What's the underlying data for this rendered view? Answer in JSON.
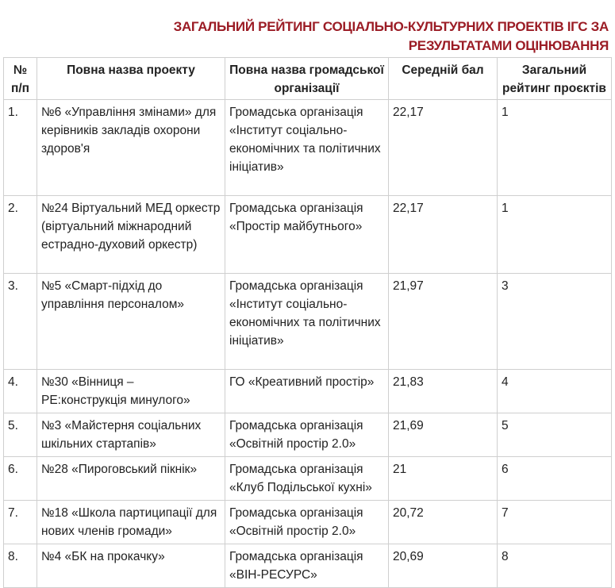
{
  "title": "ЗАГАЛЬНИЙ РЕЙТИНГ СОЦІАЛЬНО-КУЛЬТУРНИХ ПРОЕКТІВ ІГС ЗА РЕЗУЛЬТАТАМИ ОЦІНЮВАННЯ",
  "table": {
    "header": [
      "№ п/п",
      "Повна назва проекту",
      "Повна назва громадської організації",
      "Середній бал",
      "Загальний рейтинг проєктів"
    ],
    "rows": [
      [
        "1.",
        "№6 «Управління змінами» для керівників закладів охорони здоров'я",
        "Громадська організація «Інститут соціально-економічних та політичних ініціатив»",
        "22,17",
        "1"
      ],
      [
        "2.",
        "№24 Віртуальний МЕД оркестр (віртуальний міжнародний естрадно-духовий оркестр)",
        "Громадська організація «Простір майбутнього»",
        "22,17",
        "1"
      ],
      [
        "3.",
        "№5 «Смарт-підхід до управління персоналом»",
        "Громадська організація «Інститут соціально-економічних та політичних ініціатив»",
        "21,97",
        "3"
      ],
      [
        "4.",
        "№30 «Вінниця – РЕ:конструкція минулого»",
        "ГО «Креативний простір»",
        "21,83",
        "4"
      ],
      [
        "5.",
        "№3 «Майстерня соціальних шкільних стартапів»",
        "Громадська організація «Освітній простір 2.0»",
        "21,69",
        "5"
      ],
      [
        "6.",
        "№28 «Пироговський пікнік»",
        "Громадська організація «Клуб Подільської кухні»",
        "21",
        "6"
      ],
      [
        "7.",
        "№18 «Школа партиципації для нових членів громади»",
        "Громадська організація «Освітній простір 2.0»",
        "20,72",
        "7"
      ],
      [
        "8.",
        "№4 «БК на прокачку»",
        "Громадська організація «ВІН-РЕСУРС»",
        "20,69",
        "8"
      ]
    ]
  }
}
